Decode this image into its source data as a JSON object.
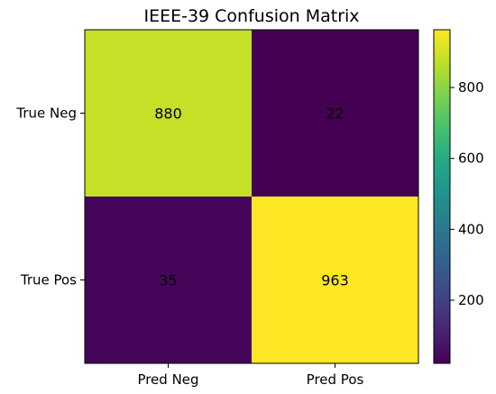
{
  "chart_data": {
    "type": "heatmap",
    "title": "IEEE-39 Confusion Matrix",
    "xlabel": "",
    "ylabel": "",
    "x_categories": [
      "Pred Neg",
      "Pred Pos"
    ],
    "y_categories": [
      "True Neg",
      "True Pos"
    ],
    "values": [
      [
        880,
        22
      ],
      [
        35,
        963
      ]
    ],
    "colormap": "viridis",
    "colorbar": {
      "ticks": [
        200,
        400,
        600,
        800
      ],
      "range": [
        22,
        963
      ]
    },
    "grid": false
  }
}
